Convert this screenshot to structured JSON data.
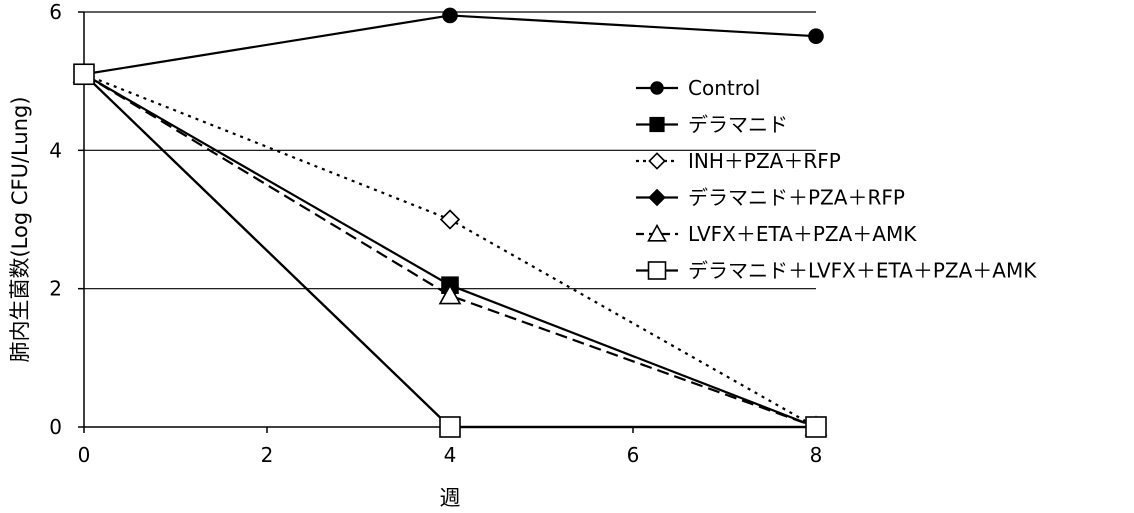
{
  "chart_data": {
    "type": "line",
    "xlabel": "週",
    "ylabel": "肺内生菌数(Log CFU/Lung)",
    "xlim": [
      0,
      8
    ],
    "ylim": [
      0,
      6
    ],
    "x_ticks": [
      "0",
      "2",
      "4",
      "6",
      "8"
    ],
    "y_ticks": [
      "0",
      "2",
      "4",
      "6"
    ],
    "grid": "horizontal",
    "legend_position": "right",
    "x": [
      0,
      4,
      8
    ],
    "series": [
      {
        "name": "Control",
        "values": [
          5.1,
          5.95,
          5.65
        ],
        "marker": "circle",
        "fill": "#000000",
        "dash": "solid"
      },
      {
        "name": "デラマニド",
        "values": [
          5.1,
          2.05,
          0
        ],
        "marker": "square",
        "fill": "#000000",
        "dash": "solid"
      },
      {
        "name": "INH＋PZA＋RFP",
        "values": [
          5.1,
          3.0,
          0
        ],
        "marker": "diamond",
        "fill": "#ffffff",
        "dash": "dotted"
      },
      {
        "name": "デラマニド＋PZA＋RFP",
        "values": [
          5.1,
          0,
          0
        ],
        "marker": "diamond",
        "fill": "#000000",
        "dash": "solid"
      },
      {
        "name": "LVFX＋ETA＋PZA＋AMK",
        "values": [
          5.1,
          1.9,
          0
        ],
        "marker": "triangle",
        "fill": "#ffffff",
        "dash": "dashed"
      },
      {
        "name": "デラマニド＋LVFX＋ETA＋PZA＋AMK",
        "values": [
          5.1,
          0,
          0
        ],
        "marker": "square",
        "fill": "#ffffff",
        "dash": "solid"
      }
    ]
  }
}
